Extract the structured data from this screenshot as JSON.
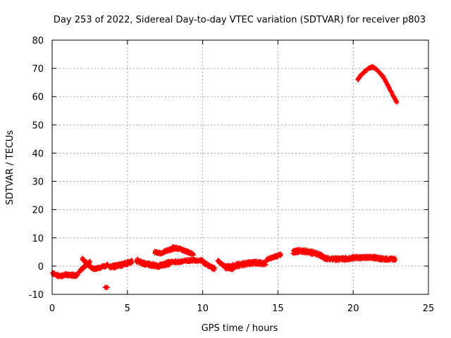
{
  "chart_data": {
    "type": "scatter",
    "title": "Day 253 of 2022, Sidereal Day-to-day VTEC variation (SDTVAR) for receiver p803",
    "xlabel": "GPS time / hours",
    "ylabel": "SDTVAR / TECUs",
    "xlim": [
      0,
      25
    ],
    "ylim": [
      -10,
      80
    ],
    "xticks": [
      0,
      5,
      10,
      15,
      20,
      25
    ],
    "yticks": [
      -10,
      0,
      10,
      20,
      30,
      40,
      50,
      60,
      70,
      80
    ],
    "grid": true,
    "marker": "plus",
    "color": "#ff0000",
    "series": [
      {
        "name": "SDTVAR",
        "segments": [
          {
            "x": [
              0.0,
              0.3,
              0.6,
              0.9,
              1.2,
              1.5,
              1.7
            ],
            "y": [
              -2.5,
              -3.2,
              -3.5,
              -3.0,
              -3.2,
              -3.3,
              -3.0
            ],
            "spread": 1.2
          },
          {
            "x": [
              1.8,
              2.0,
              2.2,
              2.5
            ],
            "y": [
              -2.0,
              -1.0,
              0.0,
              1.5
            ],
            "spread": 1.0
          },
          {
            "x": [
              2.0,
              2.3,
              2.6,
              2.9,
              3.2,
              3.5,
              3.7
            ],
            "y": [
              2.5,
              1.0,
              -0.5,
              -1.0,
              -0.5,
              0.0,
              0.5
            ],
            "spread": 1.0
          },
          {
            "x": [
              3.5,
              3.6,
              3.7
            ],
            "y": [
              -7.5,
              -7.6,
              -7.4
            ],
            "spread": 0.3
          },
          {
            "x": [
              3.8,
              4.2,
              4.6,
              5.0,
              5.3
            ],
            "y": [
              -0.5,
              0.0,
              0.5,
              1.0,
              1.5
            ],
            "spread": 1.5
          },
          {
            "x": [
              5.6,
              6.0,
              6.5,
              7.0,
              7.4,
              7.8
            ],
            "y": [
              2.0,
              1.0,
              0.5,
              0.0,
              0.5,
              1.0
            ],
            "spread": 1.5
          },
          {
            "x": [
              6.8,
              7.2,
              7.6,
              8.0,
              8.3
            ],
            "y": [
              5.0,
              4.5,
              5.5,
              6.0,
              6.5
            ],
            "spread": 1.0
          },
          {
            "x": [
              8.0,
              8.5,
              9.0,
              9.4
            ],
            "y": [
              6.5,
              6.0,
              5.0,
              4.0
            ],
            "spread": 1.0
          },
          {
            "x": [
              7.5,
              8.0,
              8.5,
              9.0,
              9.5,
              10.0
            ],
            "y": [
              1.0,
              1.5,
              1.5,
              2.0,
              2.0,
              2.0
            ],
            "spread": 1.0
          },
          {
            "x": [
              10.0,
              10.3,
              10.6,
              10.8
            ],
            "y": [
              1.5,
              0.5,
              -0.5,
              -1.0
            ],
            "spread": 1.2
          },
          {
            "x": [
              11.0,
              11.3,
              11.6,
              12.0
            ],
            "y": [
              2.0,
              0.5,
              -0.5,
              -1.0
            ],
            "spread": 1.0
          },
          {
            "x": [
              11.5,
              12.0,
              12.5,
              13.0,
              13.5,
              14.0,
              14.2
            ],
            "y": [
              -0.5,
              0.0,
              0.5,
              1.0,
              1.2,
              1.0,
              1.0
            ],
            "spread": 1.5
          },
          {
            "x": [
              14.3,
              14.6,
              14.9,
              15.2
            ],
            "y": [
              2.5,
              3.0,
              3.5,
              4.0
            ],
            "spread": 1.0
          },
          {
            "x": [
              16.0,
              16.5,
              17.0,
              17.5,
              18.0
            ],
            "y": [
              5.0,
              5.5,
              5.0,
              4.5,
              3.5
            ],
            "spread": 1.5
          },
          {
            "x": [
              18.0,
              18.5,
              19.0,
              19.5,
              20.0,
              20.5,
              21.0,
              21.5,
              22.0,
              22.5,
              22.8
            ],
            "y": [
              3.0,
              2.5,
              2.5,
              2.5,
              3.0,
              3.0,
              3.0,
              3.0,
              2.5,
              2.5,
              2.5
            ],
            "spread": 1.3
          },
          {
            "x": [
              20.3,
              20.5,
              20.8,
              21.0,
              21.3,
              21.6,
              22.0,
              22.3,
              22.6,
              22.9
            ],
            "y": [
              66.0,
              67.5,
              69.0,
              70.0,
              70.5,
              69.5,
              67.0,
              64.0,
              61.0,
              58.0
            ],
            "spread": 0.6
          }
        ]
      }
    ]
  }
}
